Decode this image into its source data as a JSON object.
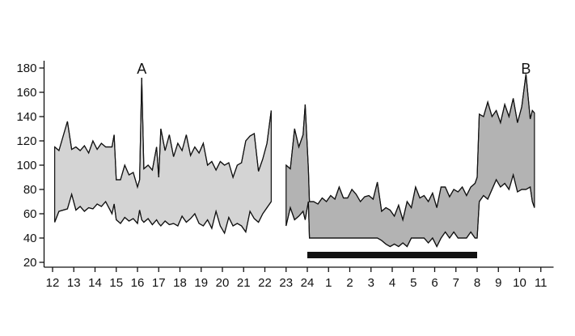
{
  "chart_data": {
    "type": "range_area",
    "xlim": [
      11.6,
      35.6
    ],
    "xticks": [
      12,
      13,
      14,
      15,
      16,
      17,
      18,
      19,
      20,
      21,
      22,
      23,
      24,
      {
        "value": 25,
        "label": "1"
      },
      {
        "value": 26,
        "label": "2"
      },
      {
        "value": 27,
        "label": "3"
      },
      {
        "value": 28,
        "label": "4"
      },
      {
        "value": 29,
        "label": "5"
      },
      {
        "value": 30,
        "label": "6"
      },
      {
        "value": 31,
        "label": "7"
      },
      {
        "value": 32,
        "label": "8"
      },
      {
        "value": 33,
        "label": "9"
      },
      {
        "value": 34,
        "label": "10"
      },
      {
        "value": 35,
        "label": "11"
      }
    ],
    "ylim": [
      16,
      186
    ],
    "yticks": [
      20,
      40,
      60,
      80,
      100,
      120,
      140,
      160,
      180
    ],
    "annotations": [
      "A",
      "B"
    ],
    "series": [
      {
        "color": "#d4d4d4",
        "x": [
          12.1,
          12.3,
          12.7,
          12.9,
          13.1,
          13.3,
          13.5,
          13.7,
          13.9,
          14.1,
          14.3,
          14.5,
          14.8,
          14.9,
          15.0,
          15.2,
          15.4,
          15.6,
          15.8,
          16.0,
          16.1,
          16.2,
          16.3,
          16.5,
          16.7,
          16.9,
          17.0,
          17.1,
          17.3,
          17.5,
          17.7,
          17.9,
          18.1,
          18.3,
          18.5,
          18.7,
          18.9,
          19.1,
          19.3,
          19.5,
          19.7,
          19.9,
          20.1,
          20.3,
          20.5,
          20.7,
          20.9,
          21.1,
          21.3,
          21.5,
          21.7,
          21.9,
          22.1,
          22.3
        ],
        "upper": [
          115,
          112,
          136,
          113,
          115,
          112,
          116,
          110,
          120,
          113,
          118,
          115,
          115,
          125,
          88,
          88,
          100,
          92,
          94,
          82,
          88,
          172,
          97,
          100,
          96,
          115,
          90,
          130,
          112,
          125,
          107,
          118,
          112,
          125,
          108,
          115,
          110,
          118,
          100,
          103,
          96,
          103,
          100,
          102,
          90,
          100,
          102,
          120,
          124,
          126,
          95,
          105,
          118,
          145
        ],
        "lower": [
          53,
          62,
          64,
          76,
          63,
          66,
          62,
          65,
          64,
          68,
          66,
          70,
          60,
          68,
          55,
          52,
          57,
          54,
          56,
          52,
          63,
          55,
          53,
          56,
          51,
          55,
          52,
          50,
          54,
          51,
          52,
          50,
          58,
          53,
          56,
          60,
          52,
          50,
          55,
          48,
          62,
          50,
          44,
          57,
          50,
          52,
          50,
          45,
          62,
          56,
          53,
          60,
          65,
          70
        ]
      },
      {
        "color": "#b3b3b3",
        "x": [
          23.0,
          23.2,
          23.4,
          23.6,
          23.8,
          23.9,
          24.05,
          24.1,
          24.3,
          24.5,
          24.7,
          24.9,
          25.1,
          25.3,
          25.5,
          25.7,
          25.9,
          26.1,
          26.3,
          26.5,
          26.7,
          26.9,
          27.1,
          27.3,
          27.5,
          27.7,
          27.9,
          28.1,
          28.3,
          28.5,
          28.7,
          28.9,
          29.1,
          29.3,
          29.5,
          29.7,
          29.9,
          30.1,
          30.3,
          30.5,
          30.7,
          30.9,
          31.1,
          31.3,
          31.5,
          31.7,
          31.9,
          32.0,
          32.1,
          32.3,
          32.5,
          32.7,
          32.9,
          33.1,
          33.3,
          33.5,
          33.7,
          33.9,
          34.1,
          34.3,
          34.5,
          34.6,
          34.7
        ],
        "upper": [
          100,
          97,
          130,
          115,
          125,
          150,
          97,
          70,
          70,
          68,
          73,
          70,
          75,
          72,
          82,
          73,
          73,
          80,
          76,
          70,
          74,
          75,
          72,
          86,
          62,
          65,
          63,
          58,
          67,
          55,
          70,
          65,
          82,
          73,
          75,
          70,
          77,
          65,
          82,
          82,
          74,
          80,
          78,
          82,
          75,
          82,
          85,
          90,
          142,
          140,
          152,
          140,
          145,
          135,
          150,
          140,
          155,
          135,
          148,
          175,
          138,
          145,
          143
        ],
        "lower": [
          50,
          65,
          55,
          58,
          62,
          55,
          70,
          40,
          40,
          40,
          40,
          40,
          40,
          40,
          40,
          40,
          40,
          40,
          40,
          40,
          40,
          40,
          40,
          40,
          38,
          35,
          33,
          35,
          33,
          36,
          33,
          40,
          40,
          40,
          40,
          36,
          40,
          33,
          40,
          45,
          40,
          45,
          40,
          40,
          40,
          45,
          40,
          40,
          70,
          75,
          72,
          80,
          88,
          82,
          85,
          80,
          92,
          78,
          80,
          80,
          82,
          70,
          65
        ]
      }
    ],
    "period": [
      24,
      32
    ],
    "period_color": "#111111"
  }
}
